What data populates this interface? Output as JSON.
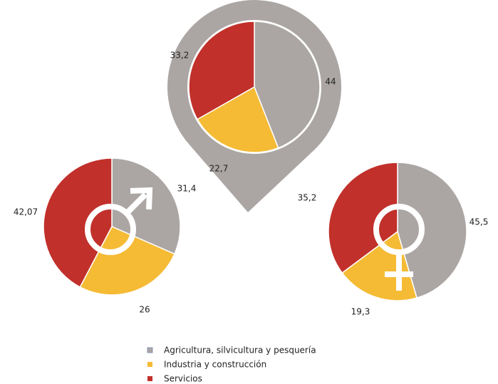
{
  "legend": {
    "categories": [
      "Agricultura, silvicultura y pesquería",
      "Industria y construcción",
      "Servicios"
    ],
    "colors": [
      "#aba6a4",
      "#f5bb35",
      "#c1302a"
    ]
  },
  "chart_data": [
    {
      "type": "pie",
      "values": [
        44,
        22.7,
        33.2
      ],
      "value_labels": [
        "44",
        "22,7",
        "33,2"
      ]
    },
    {
      "type": "pie",
      "values": [
        31.4,
        26,
        42.07
      ],
      "value_labels": [
        "31,4",
        "26",
        "42,07"
      ]
    },
    {
      "type": "pie",
      "values": [
        45.5,
        19.3,
        35.2
      ],
      "value_labels": [
        "45,5",
        "19,3",
        "35,2"
      ]
    }
  ]
}
